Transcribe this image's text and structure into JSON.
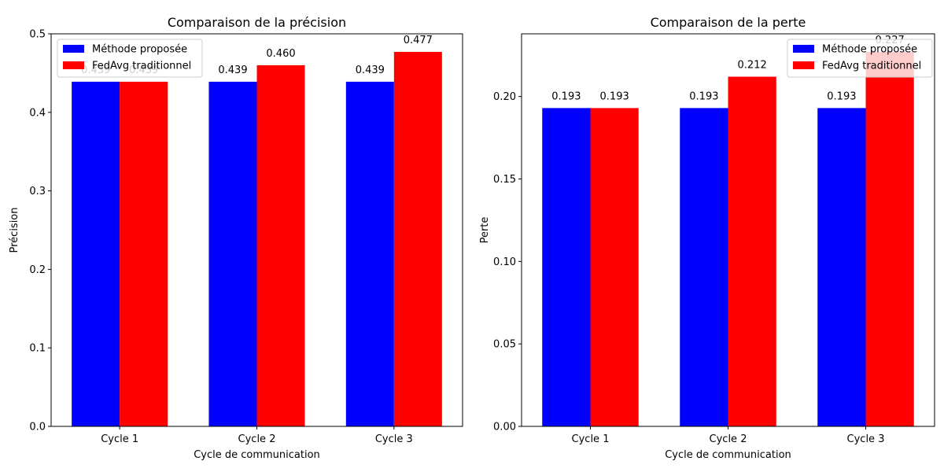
{
  "chart_data": [
    {
      "type": "bar",
      "title": "Comparaison de la précision",
      "xlabel": "Cycle de communication",
      "ylabel": "Précision",
      "categories": [
        "Cycle 1",
        "Cycle 2",
        "Cycle 3"
      ],
      "ylim": [
        0,
        0.5
      ],
      "yticks": [
        "0.0",
        "0.1",
        "0.2",
        "0.3",
        "0.4",
        "0.5"
      ],
      "yticks_values": [
        0,
        0.1,
        0.2,
        0.3,
        0.4,
        0.5
      ],
      "series": [
        {
          "name": "Méthode proposée",
          "color": "#0000ff",
          "values": [
            0.439,
            0.439,
            0.439
          ],
          "labels": [
            "0.439",
            "0.439",
            "0.439"
          ]
        },
        {
          "name": "FedAvg traditionnel",
          "color": "#ff0000",
          "values": [
            0.439,
            0.46,
            0.477
          ],
          "labels": [
            "0.439",
            "0.460",
            "0.477"
          ]
        }
      ],
      "legend": "top-left"
    },
    {
      "type": "bar",
      "title": "Comparaison de la perte",
      "xlabel": "Cycle de communication",
      "ylabel": "Perte",
      "categories": [
        "Cycle 1",
        "Cycle 2",
        "Cycle 3"
      ],
      "ylim": [
        0,
        0.238
      ],
      "yticks": [
        "0.00",
        "0.05",
        "0.10",
        "0.15",
        "0.20"
      ],
      "yticks_values": [
        0,
        0.05,
        0.1,
        0.15,
        0.2
      ],
      "series": [
        {
          "name": "Méthode proposée",
          "color": "#0000ff",
          "values": [
            0.193,
            0.193,
            0.193
          ],
          "labels": [
            "0.193",
            "0.193",
            "0.193"
          ]
        },
        {
          "name": "FedAvg traditionnel",
          "color": "#ff0000",
          "values": [
            0.193,
            0.212,
            0.227
          ],
          "labels": [
            "0.193",
            "0.212",
            "0.227"
          ]
        }
      ],
      "legend": "top-right"
    }
  ]
}
